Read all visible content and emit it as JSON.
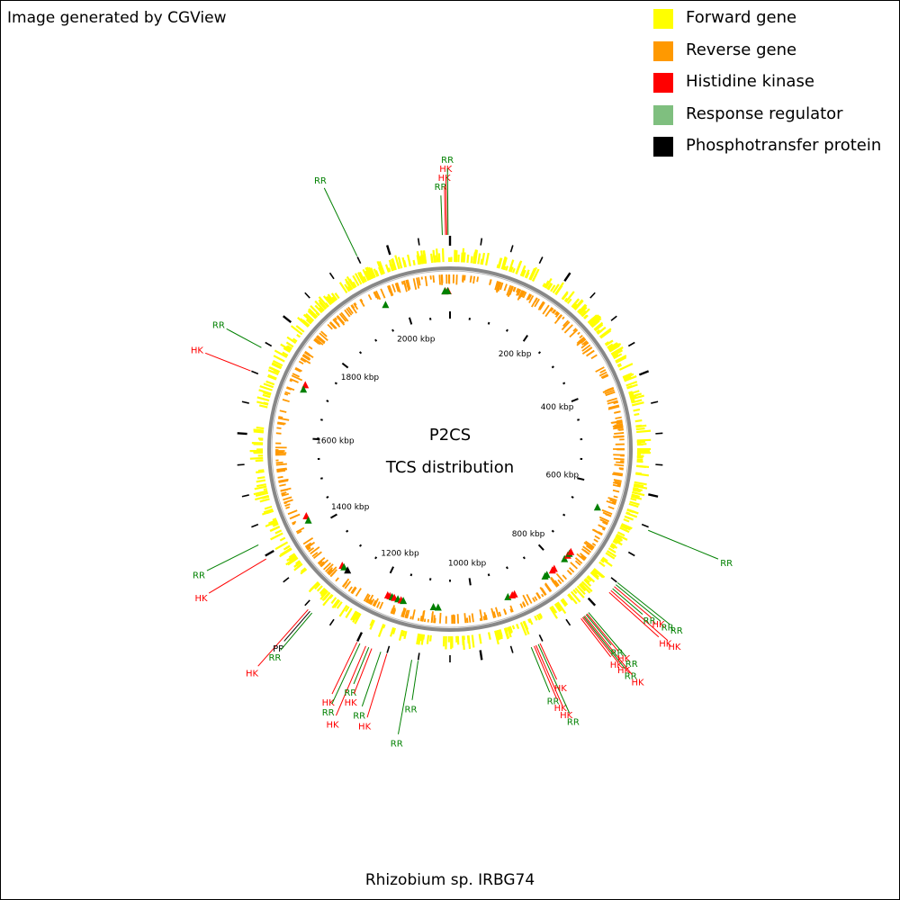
{
  "header": {
    "credit": "Image generated by CGView"
  },
  "legend": {
    "items": [
      {
        "label": "Forward gene",
        "color": "#ffff00"
      },
      {
        "label": "Reverse gene",
        "color": "#ff9900"
      },
      {
        "label": "Histidine kinase",
        "color": "#ff0000"
      },
      {
        "label": "Response regulator",
        "color": "#7fbf7f"
      },
      {
        "label": "Phosphotransfer protein",
        "color": "#000000"
      }
    ]
  },
  "map": {
    "title": "P2CS",
    "subtitle": "TCS distribution",
    "organism": "Rhizobium sp. IRBG74",
    "genome_length_kbp": 2100,
    "scale_labels": [
      {
        "text": "200 kbp",
        "kbp": 200
      },
      {
        "text": "400 kbp",
        "kbp": 400
      },
      {
        "text": "600 kbp",
        "kbp": 600
      },
      {
        "text": "800 kbp",
        "kbp": 800
      },
      {
        "text": "1000 kbp",
        "kbp": 1000
      },
      {
        "text": "1200 kbp",
        "kbp": 1200
      },
      {
        "text": "1400 kbp",
        "kbp": 1400
      },
      {
        "text": "1600 kbp",
        "kbp": 1600
      },
      {
        "text": "1800 kbp",
        "kbp": 1800
      },
      {
        "text": "2000 kbp",
        "kbp": 2000
      }
    ],
    "features": [
      {
        "label": "RR",
        "type": "RR",
        "kbp": 2088
      },
      {
        "label": "HK",
        "type": "HK",
        "kbp": 2093
      },
      {
        "label": "HK",
        "type": "HK",
        "kbp": 2095
      },
      {
        "label": "RR",
        "type": "RR",
        "kbp": 2097
      },
      {
        "label": "RR",
        "type": "RR",
        "kbp": 1950
      },
      {
        "label": "RR",
        "type": "RR",
        "kbp": 1740
      },
      {
        "label": "HK",
        "type": "HK",
        "kbp": 1700
      },
      {
        "label": "RR",
        "type": "RR",
        "kbp": 1420
      },
      {
        "label": "HK",
        "type": "HK",
        "kbp": 1395
      },
      {
        "label": "HK",
        "type": "HK",
        "kbp": 1292
      },
      {
        "label": "PP",
        "type": "PP",
        "kbp": 1288
      },
      {
        "label": "RR",
        "type": "RR",
        "kbp": 1284
      },
      {
        "label": "HK",
        "type": "HK",
        "kbp": 1200
      },
      {
        "label": "RR",
        "type": "RR",
        "kbp": 1195
      },
      {
        "label": "HK",
        "type": "HK",
        "kbp": 1185
      },
      {
        "label": "RR",
        "type": "RR",
        "kbp": 1180
      },
      {
        "label": "HK",
        "type": "HK",
        "kbp": 1175
      },
      {
        "label": "RR",
        "type": "RR",
        "kbp": 1160
      },
      {
        "label": "HK",
        "type": "HK",
        "kbp": 1150
      },
      {
        "label": "RR",
        "type": "RR",
        "kbp": 1110
      },
      {
        "label": "RR",
        "type": "RR",
        "kbp": 1100
      },
      {
        "label": "RR",
        "type": "RR",
        "kbp": 920
      },
      {
        "label": "HK",
        "type": "HK",
        "kbp": 915
      },
      {
        "label": "HK",
        "type": "HK",
        "kbp": 912
      },
      {
        "label": "RR",
        "type": "RR",
        "kbp": 908
      },
      {
        "label": "HK",
        "type": "HK",
        "kbp": 905
      },
      {
        "label": "HK",
        "type": "HK",
        "kbp": 830
      },
      {
        "label": "HK",
        "type": "HK",
        "kbp": 827
      },
      {
        "label": "RR",
        "type": "RR",
        "kbp": 825
      },
      {
        "label": "HK",
        "type": "HK",
        "kbp": 823
      },
      {
        "label": "RR",
        "type": "RR",
        "kbp": 820
      },
      {
        "label": "HK",
        "type": "HK",
        "kbp": 818
      },
      {
        "label": "RR",
        "type": "RR",
        "kbp": 815
      },
      {
        "label": "HK",
        "type": "HK",
        "kbp": 770
      },
      {
        "label": "HK",
        "type": "HK",
        "kbp": 766
      },
      {
        "label": "RR",
        "type": "RR",
        "kbp": 762
      },
      {
        "label": "HK",
        "type": "HK",
        "kbp": 758
      },
      {
        "label": "RR",
        "type": "RR",
        "kbp": 754
      },
      {
        "label": "RR",
        "type": "RR",
        "kbp": 750
      },
      {
        "label": "RR",
        "type": "RR",
        "kbp": 655
      }
    ],
    "inner_markers": [
      {
        "type": "HK",
        "kbp": 2090
      },
      {
        "type": "HK",
        "kbp": 2096
      },
      {
        "type": "RR",
        "kbp": 2089
      },
      {
        "type": "RR",
        "kbp": 2095
      },
      {
        "type": "RR",
        "kbp": 1960
      },
      {
        "type": "HK",
        "kbp": 1715
      },
      {
        "type": "RR",
        "kbp": 1705
      },
      {
        "type": "HK",
        "kbp": 1430
      },
      {
        "type": "RR",
        "kbp": 1420
      },
      {
        "type": "HK",
        "kbp": 1300
      },
      {
        "type": "RR",
        "kbp": 1295
      },
      {
        "type": "PP",
        "kbp": 1285
      },
      {
        "type": "HK",
        "kbp": 1185
      },
      {
        "type": "HK",
        "kbp": 1180
      },
      {
        "type": "RR",
        "kbp": 1175
      },
      {
        "type": "HK",
        "kbp": 1170
      },
      {
        "type": "RR",
        "kbp": 1162
      },
      {
        "type": "HK",
        "kbp": 1155
      },
      {
        "type": "RR",
        "kbp": 1150
      },
      {
        "type": "RR",
        "kbp": 1085
      },
      {
        "type": "RR",
        "kbp": 1075
      },
      {
        "type": "RR",
        "kbp": 925
      },
      {
        "type": "HK",
        "kbp": 915
      },
      {
        "type": "HK",
        "kbp": 910
      },
      {
        "type": "RR",
        "kbp": 835
      },
      {
        "type": "RR",
        "kbp": 830
      },
      {
        "type": "HK",
        "kbp": 815
      },
      {
        "type": "HK",
        "kbp": 810
      },
      {
        "type": "RR",
        "kbp": 780
      },
      {
        "type": "HK",
        "kbp": 770
      },
      {
        "type": "RR",
        "kbp": 765
      },
      {
        "type": "HK",
        "kbp": 760
      },
      {
        "type": "RR",
        "kbp": 650
      }
    ]
  }
}
